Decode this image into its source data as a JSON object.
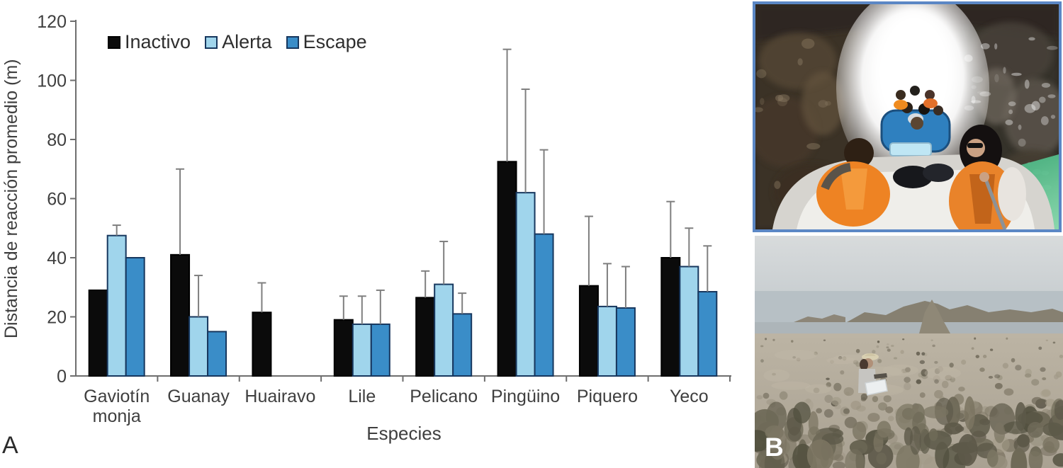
{
  "panels": {
    "a_label": "A",
    "b_label": "B"
  },
  "chart_data": {
    "type": "bar",
    "title": "",
    "xlabel": "Especies",
    "ylabel": "Distancia de reacción promedio (m)",
    "ylim": [
      0,
      120
    ],
    "yticks": [
      0,
      20,
      40,
      60,
      80,
      100,
      120
    ],
    "grid": false,
    "legend_position": "top-left-inside",
    "error_bars": "plus-only",
    "categories": [
      "Gaviotín monja",
      "Guanay",
      "Huairavo",
      "Lile",
      "Pelicano",
      "Pingüino",
      "Piquero",
      "Yeco"
    ],
    "series": [
      {
        "name": "Inactivo",
        "fill": "#0b0b0b",
        "border": "#000000",
        "values": [
          29,
          41,
          21.5,
          19,
          26.5,
          72.5,
          30.5,
          40
        ],
        "errors_plus": [
          0,
          29,
          10,
          8,
          9,
          38,
          23.5,
          19
        ]
      },
      {
        "name": "Alerta",
        "fill": "#a0d5ec",
        "border": "#17375e",
        "values": [
          47.5,
          20,
          null,
          17.5,
          31,
          62,
          23.5,
          37
        ],
        "errors_plus": [
          3.5,
          14,
          null,
          9.5,
          14.5,
          35,
          14.5,
          13
        ]
      },
      {
        "name": "Escape",
        "fill": "#3a8dc8",
        "border": "#17375e",
        "values": [
          40,
          15,
          null,
          17.5,
          21,
          48,
          23,
          28.5
        ],
        "errors_plus": [
          0,
          0,
          null,
          11.5,
          7,
          28.5,
          14,
          15.5
        ]
      }
    ],
    "axis_color": "#6e6e6e",
    "error_color": "#7f7f7f",
    "text_color": "#3f3f3f"
  }
}
